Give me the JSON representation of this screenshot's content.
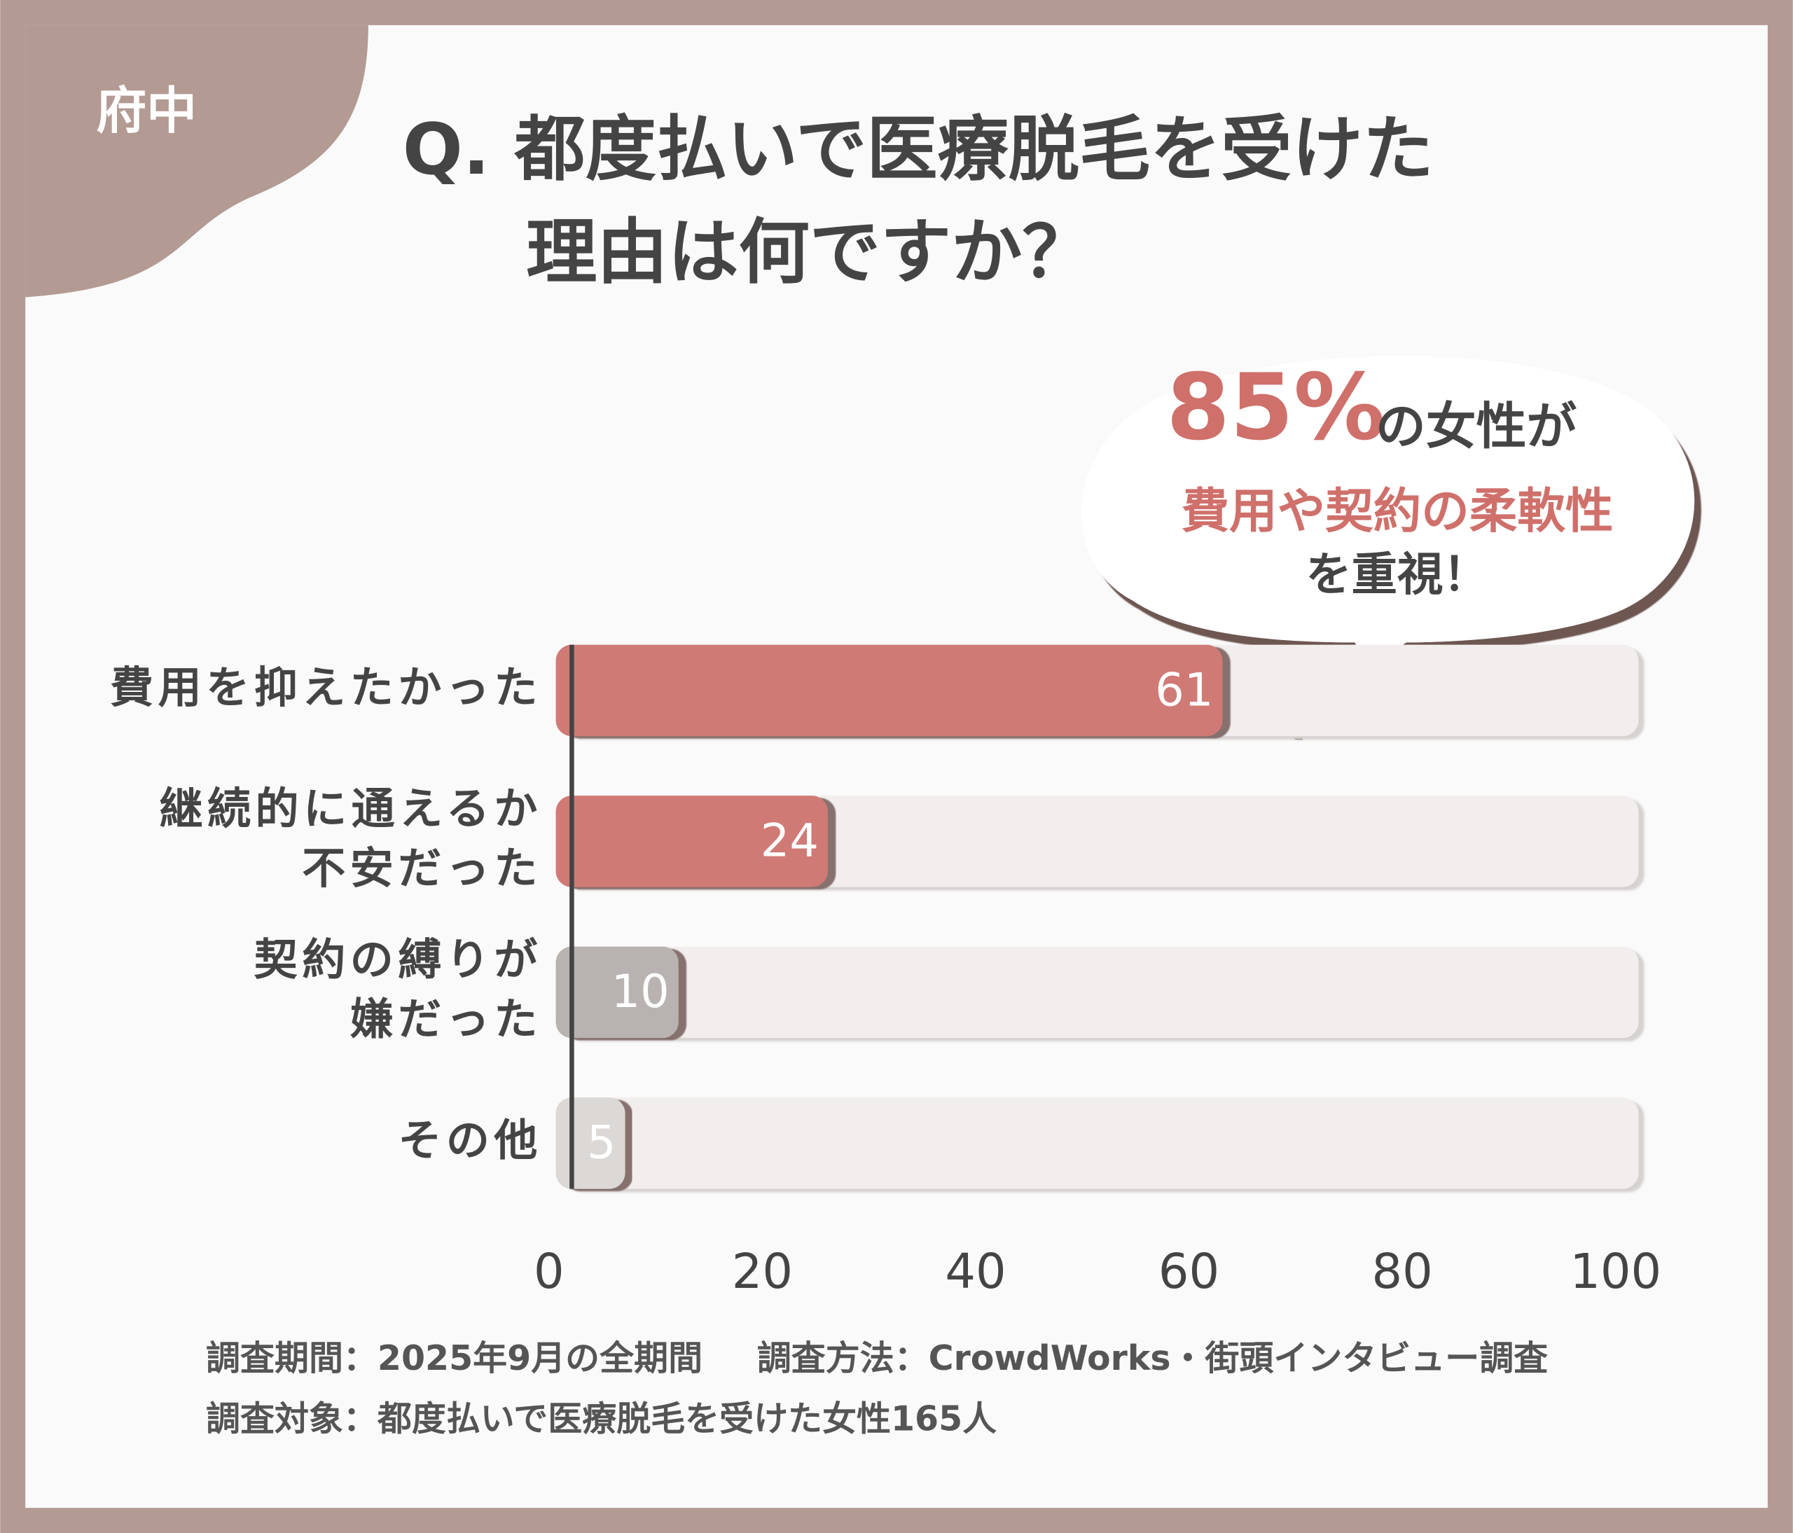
{
  "tag": "府中",
  "chart_data": {
    "type": "barh",
    "title": [
      "Q. 都度払いで医療脱毛を受けた",
      "理由は何ですか？"
    ],
    "categories": [
      "費用を抑えたかった",
      "継続的に通えるか\n不安だった",
      "契約の縛りが\n嫌だった",
      "その他"
    ],
    "values": [
      61,
      24,
      10,
      5
    ],
    "colors": [
      "#d07a76",
      "#d07a76",
      "#b8b3b1",
      "#dcd8d6"
    ],
    "track_color": "#f2eeed",
    "xlim": [
      0,
      100
    ],
    "xticks": [
      0,
      20,
      40,
      60,
      80,
      100
    ],
    "annotation": {
      "highlight": "85%",
      "rest": "の女性が",
      "line2": "費用や契約の柔軟性",
      "line3": "を重視！"
    }
  },
  "notes": [
    "調査期間：2025年9月の全期間",
    "調査方法：CrowdWorks・街頭インタビュー調査",
    "調査対象：都度払いで医療脱毛を受けた女性165人"
  ]
}
